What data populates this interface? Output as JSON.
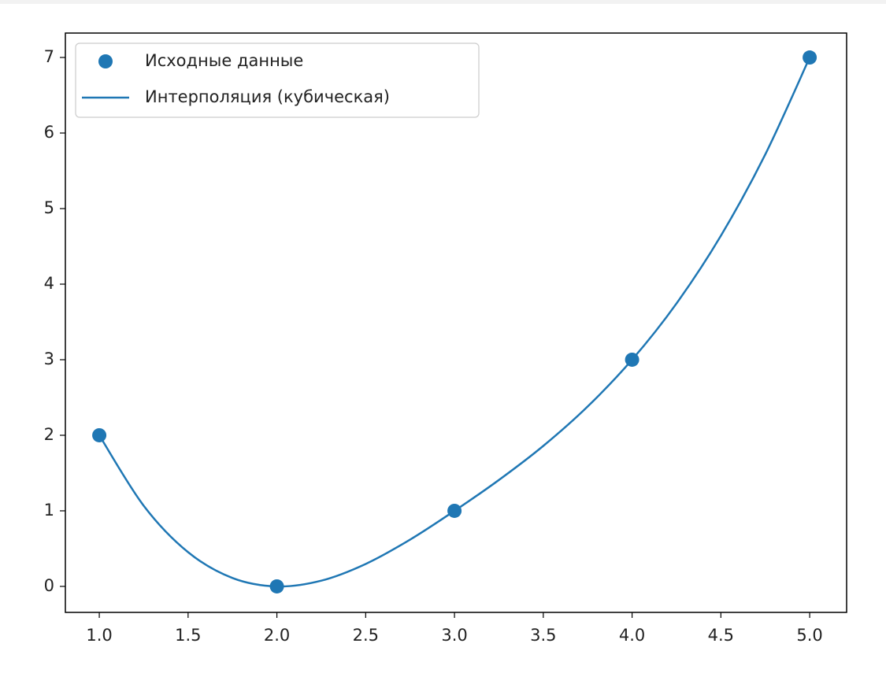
{
  "chart_data": {
    "type": "scatter-line",
    "series": [
      {
        "name": "Исходные данные",
        "kind": "scatter",
        "color": "#1f77b4",
        "x": [
          1,
          2,
          3,
          4,
          5
        ],
        "values": [
          2,
          0,
          1,
          3,
          7
        ]
      },
      {
        "name": "Интерполяция (кубическая)",
        "kind": "line",
        "color": "#1f77b4",
        "x": [
          1,
          1.25,
          1.5,
          1.75,
          2,
          2.25,
          2.5,
          2.75,
          3,
          3.25,
          3.5,
          3.75,
          4,
          4.25,
          4.5,
          4.75,
          5
        ],
        "values": [
          2,
          1.068,
          0.453,
          0.111,
          0,
          0.076,
          0.297,
          0.619,
          1,
          1.408,
          1.859,
          2.381,
          3,
          3.744,
          4.641,
          5.717,
          7
        ]
      }
    ],
    "xlim": [
      0.809,
      5.208
    ],
    "ylim": [
      -0.344,
      7.323
    ],
    "xticks": [
      {
        "value": 1,
        "label": "1.0"
      },
      1.5,
      {
        "value": 2,
        "label": "2.0"
      },
      2.5,
      {
        "value": 3,
        "label": "3.0"
      },
      3.5,
      {
        "value": 4,
        "label": "4.0"
      },
      4.5,
      {
        "value": 5,
        "label": "5.0"
      }
    ],
    "yticks": [
      0,
      1,
      2,
      3,
      4,
      5,
      6,
      7
    ],
    "legend": "upper left"
  }
}
